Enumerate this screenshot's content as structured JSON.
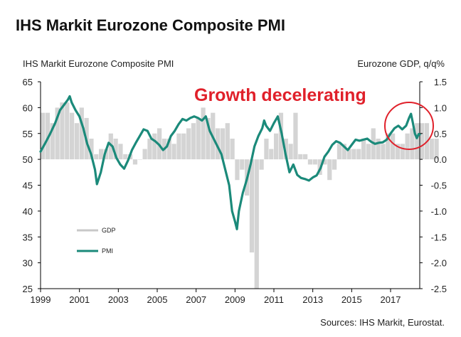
{
  "chart_data": {
    "type": "bar+line",
    "title": "IHS Markit Eurozone Composite PMI",
    "left_axis_label": "IHS Markit Eurozone Composite PMI",
    "right_axis_label": "Eurozone GDP, q/q%",
    "annotation": "Growth decelerating",
    "source": "Sources: IHS Markit, Eurostat.",
    "x_range": [
      1999.0,
      2018.5
    ],
    "x_ticks": [
      "1999",
      "2001",
      "2003",
      "2005",
      "2007",
      "2009",
      "2011",
      "2013",
      "2015",
      "2017"
    ],
    "x_tick_years": [
      1999,
      2001,
      2003,
      2005,
      2007,
      2009,
      2011,
      2013,
      2015,
      2017
    ],
    "y_left": {
      "min": 25,
      "max": 65,
      "ticks": [
        "65",
        "60",
        "55",
        "50",
        "45",
        "40",
        "35",
        "30",
        "25"
      ]
    },
    "y_right": {
      "min": -2.5,
      "max": 1.5,
      "ticks": [
        "1.5",
        "1.0",
        "0.5",
        "0.0",
        "-0.5",
        "-1.0",
        "-1.5",
        "-2.0",
        "-2.5"
      ]
    },
    "legend": [
      {
        "name": "GDP",
        "color": "#c8c8c8"
      },
      {
        "name": "PMI",
        "color": "#1b8a7a"
      }
    ],
    "series": [
      {
        "name": "GDP",
        "kind": "bar",
        "axis": "right",
        "color": "#d4d4d4",
        "x_start": 1999.0,
        "step": 0.25,
        "values": [
          0.9,
          0.9,
          0.7,
          1.0,
          1.1,
          1.1,
          0.9,
          0.7,
          1.0,
          0.8,
          0.4,
          0.1,
          0.2,
          0.2,
          0.5,
          0.4,
          0.3,
          0.1,
          0.1,
          -0.1,
          0.0,
          0.2,
          0.4,
          0.5,
          0.6,
          0.4,
          0.4,
          0.3,
          0.5,
          0.5,
          0.6,
          0.7,
          0.8,
          1.0,
          0.8,
          0.9,
          0.6,
          0.6,
          0.7,
          0.4,
          -0.4,
          -0.2,
          -0.7,
          -1.8,
          -2.5,
          -0.2,
          0.4,
          0.2,
          0.5,
          0.9,
          0.4,
          0.3,
          0.9,
          0.1,
          0.1,
          -0.1,
          -0.1,
          -0.3,
          -0.1,
          -0.4,
          -0.2,
          0.3,
          0.3,
          0.2,
          0.2,
          0.2,
          0.4,
          0.3,
          0.6,
          0.4,
          0.3,
          0.5,
          0.5,
          0.3,
          0.3,
          0.5,
          0.6,
          0.7,
          0.7,
          0.7,
          0.4,
          0.4
        ]
      },
      {
        "name": "PMI",
        "kind": "line",
        "axis": "left",
        "color": "#1b8a7a",
        "points": [
          [
            1999.0,
            51.5
          ],
          [
            1999.25,
            53.2
          ],
          [
            1999.5,
            55.0
          ],
          [
            1999.75,
            57.0
          ],
          [
            2000.0,
            59.5
          ],
          [
            2000.2,
            60.5
          ],
          [
            2000.4,
            61.5
          ],
          [
            2000.5,
            62.2
          ],
          [
            2000.6,
            61.0
          ],
          [
            2000.8,
            59.5
          ],
          [
            2001.0,
            58.3
          ],
          [
            2001.2,
            56.0
          ],
          [
            2001.4,
            53.0
          ],
          [
            2001.6,
            51.0
          ],
          [
            2001.8,
            48.0
          ],
          [
            2001.9,
            45.2
          ],
          [
            2002.1,
            47.5
          ],
          [
            2002.3,
            51.0
          ],
          [
            2002.5,
            53.2
          ],
          [
            2002.7,
            52.5
          ],
          [
            2002.9,
            50.3
          ],
          [
            2003.1,
            49.0
          ],
          [
            2003.3,
            48.2
          ],
          [
            2003.5,
            49.8
          ],
          [
            2003.7,
            51.8
          ],
          [
            2003.9,
            53.2
          ],
          [
            2004.1,
            54.5
          ],
          [
            2004.3,
            55.8
          ],
          [
            2004.5,
            55.5
          ],
          [
            2004.7,
            54.0
          ],
          [
            2004.9,
            53.5
          ],
          [
            2005.1,
            52.8
          ],
          [
            2005.3,
            51.8
          ],
          [
            2005.5,
            52.5
          ],
          [
            2005.7,
            54.5
          ],
          [
            2005.9,
            55.5
          ],
          [
            2006.1,
            56.8
          ],
          [
            2006.3,
            57.8
          ],
          [
            2006.5,
            57.5
          ],
          [
            2006.7,
            58.0
          ],
          [
            2006.9,
            58.3
          ],
          [
            2007.1,
            58.0
          ],
          [
            2007.3,
            57.5
          ],
          [
            2007.5,
            58.3
          ],
          [
            2007.7,
            55.5
          ],
          [
            2007.9,
            54.0
          ],
          [
            2008.1,
            52.5
          ],
          [
            2008.3,
            51.0
          ],
          [
            2008.5,
            48.0
          ],
          [
            2008.7,
            45.0
          ],
          [
            2008.85,
            40.0
          ],
          [
            2009.0,
            38.0
          ],
          [
            2009.1,
            36.5
          ],
          [
            2009.2,
            40.0
          ],
          [
            2009.4,
            43.5
          ],
          [
            2009.6,
            46.0
          ],
          [
            2009.8,
            49.0
          ],
          [
            2010.0,
            52.5
          ],
          [
            2010.2,
            54.5
          ],
          [
            2010.4,
            56.0
          ],
          [
            2010.5,
            57.5
          ],
          [
            2010.6,
            56.5
          ],
          [
            2010.8,
            55.5
          ],
          [
            2011.0,
            57.0
          ],
          [
            2011.2,
            58.3
          ],
          [
            2011.4,
            55.0
          ],
          [
            2011.6,
            51.0
          ],
          [
            2011.8,
            47.5
          ],
          [
            2012.0,
            49.0
          ],
          [
            2012.2,
            47.0
          ],
          [
            2012.4,
            46.4
          ],
          [
            2012.6,
            46.2
          ],
          [
            2012.8,
            45.9
          ],
          [
            2013.0,
            46.5
          ],
          [
            2013.2,
            46.9
          ],
          [
            2013.4,
            48.3
          ],
          [
            2013.6,
            50.5
          ],
          [
            2013.8,
            51.5
          ],
          [
            2014.0,
            52.8
          ],
          [
            2014.2,
            53.5
          ],
          [
            2014.4,
            53.2
          ],
          [
            2014.6,
            52.5
          ],
          [
            2014.8,
            51.8
          ],
          [
            2015.0,
            52.8
          ],
          [
            2015.2,
            53.8
          ],
          [
            2015.4,
            53.6
          ],
          [
            2015.6,
            53.8
          ],
          [
            2015.8,
            54.0
          ],
          [
            2016.0,
            53.4
          ],
          [
            2016.2,
            53.0
          ],
          [
            2016.4,
            53.2
          ],
          [
            2016.6,
            53.3
          ],
          [
            2016.8,
            53.8
          ],
          [
            2017.0,
            55.0
          ],
          [
            2017.2,
            56.0
          ],
          [
            2017.4,
            56.5
          ],
          [
            2017.6,
            55.8
          ],
          [
            2017.8,
            56.5
          ],
          [
            2017.95,
            58.0
          ],
          [
            2018.05,
            58.8
          ],
          [
            2018.15,
            57.0
          ],
          [
            2018.25,
            55.0
          ],
          [
            2018.35,
            54.1
          ],
          [
            2018.45,
            54.9
          ],
          [
            2018.5,
            54.8
          ]
        ]
      }
    ]
  }
}
